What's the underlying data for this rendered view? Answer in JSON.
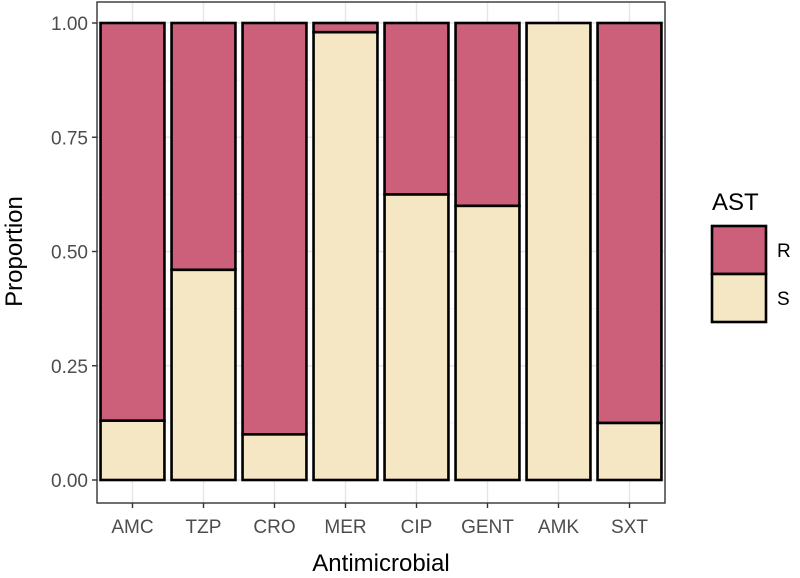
{
  "chart_data": {
    "type": "bar",
    "stacked": true,
    "categories": [
      "AMC",
      "TZP",
      "CRO",
      "MER",
      "CIP",
      "GENT",
      "AMK",
      "SXT"
    ],
    "series": [
      {
        "name": "S",
        "color": "#f5e6c4",
        "values": [
          0.13,
          0.46,
          0.1,
          0.98,
          0.625,
          0.6,
          1.0,
          0.125
        ]
      },
      {
        "name": "R",
        "color": "#cc5f7a",
        "values": [
          0.87,
          0.54,
          0.9,
          0.02,
          0.375,
          0.4,
          0.0,
          0.875
        ]
      }
    ],
    "title": "",
    "xlabel": "Antimicrobial",
    "ylabel": "Proportion",
    "ylim": [
      0,
      1
    ],
    "yticks": [
      0.0,
      0.25,
      0.5,
      0.75,
      1.0
    ],
    "ytick_labels": [
      "0.00",
      "0.25",
      "0.50",
      "0.75",
      "1.00"
    ],
    "grid": true,
    "legend": {
      "title": "AST",
      "placement": "right",
      "entries": [
        {
          "label": "R",
          "color": "#cc5f7a"
        },
        {
          "label": "S",
          "color": "#f5e6c4"
        }
      ]
    }
  }
}
